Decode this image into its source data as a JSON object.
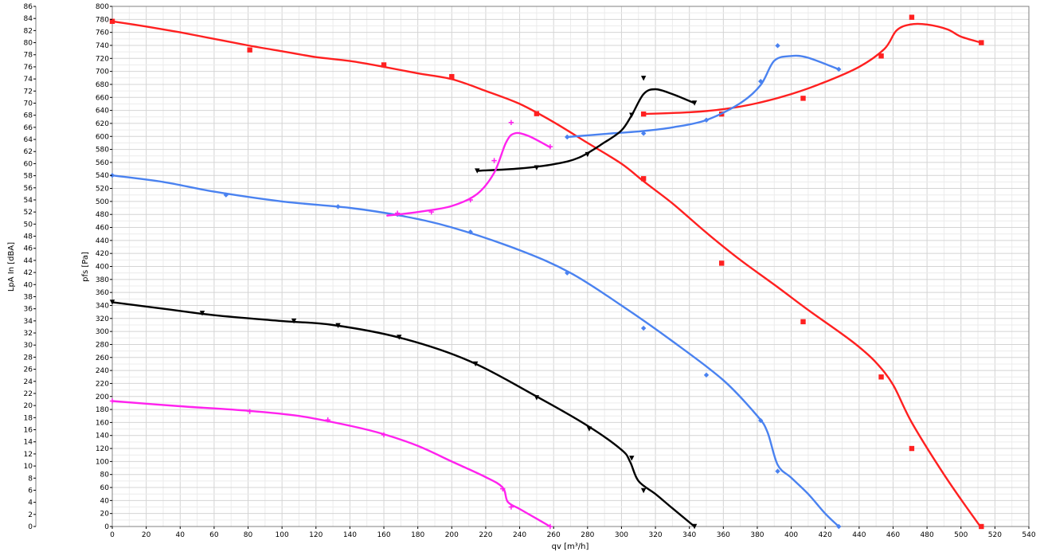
{
  "chart_data": {
    "type": "line",
    "xlabel": "qv [m³/h]",
    "ylabel": "pfs [Pa]",
    "y2label": "LpA In [dBA]",
    "xlim": [
      0,
      540
    ],
    "ylim": [
      0,
      800
    ],
    "y2lim": [
      0,
      86
    ],
    "x_ticks": [
      0,
      20,
      40,
      60,
      80,
      100,
      120,
      140,
      160,
      180,
      200,
      220,
      240,
      260,
      280,
      300,
      320,
      340,
      360,
      380,
      400,
      420,
      440,
      460,
      480,
      500,
      520,
      540
    ],
    "y_ticks": [
      0,
      20,
      40,
      60,
      80,
      100,
      120,
      140,
      160,
      180,
      200,
      220,
      240,
      260,
      280,
      300,
      320,
      340,
      360,
      380,
      400,
      420,
      440,
      460,
      480,
      500,
      520,
      540,
      560,
      580,
      600,
      620,
      640,
      660,
      680,
      700,
      720,
      740,
      760,
      780,
      800
    ],
    "y2_ticks": [
      0,
      2,
      4,
      6,
      8,
      10,
      12,
      14,
      16,
      18,
      20,
      22,
      24,
      26,
      28,
      30,
      32,
      34,
      36,
      38,
      40,
      42,
      44,
      46,
      48,
      50,
      52,
      54,
      56,
      58,
      60,
      62,
      64,
      66,
      68,
      70,
      72,
      74,
      76,
      78,
      80,
      82,
      84,
      86
    ],
    "grid": true,
    "series": [
      {
        "color": "#ff2020",
        "axis": "pressure",
        "marker": "square",
        "points": [
          [
            0,
            777
          ],
          [
            20,
            769
          ],
          [
            40,
            760
          ],
          [
            60,
            750
          ],
          [
            80,
            740
          ],
          [
            100,
            731
          ],
          [
            120,
            722
          ],
          [
            140,
            716
          ],
          [
            160,
            707
          ],
          [
            180,
            697
          ],
          [
            200,
            688
          ],
          [
            220,
            670
          ],
          [
            240,
            650
          ],
          [
            260,
            622
          ],
          [
            280,
            590
          ],
          [
            300,
            558
          ],
          [
            313,
            531
          ],
          [
            330,
            497
          ],
          [
            350,
            452
          ],
          [
            370,
            410
          ],
          [
            390,
            372
          ],
          [
            410,
            333
          ],
          [
            430,
            296
          ],
          [
            440,
            276
          ],
          [
            450,
            252
          ],
          [
            460,
            218
          ],
          [
            471,
            160
          ],
          [
            490,
            80
          ],
          [
            510,
            5
          ],
          [
            512,
            0
          ]
        ],
        "markers": [
          [
            0,
            777
          ],
          [
            81,
            733
          ],
          [
            160,
            710
          ],
          [
            200,
            692
          ],
          [
            250,
            635
          ],
          [
            313,
            535
          ],
          [
            359,
            405
          ],
          [
            407,
            315
          ],
          [
            453,
            230
          ],
          [
            471,
            120
          ],
          [
            512,
            0
          ]
        ]
      },
      {
        "color": "#4a82f0",
        "axis": "pressure",
        "marker": "diamond",
        "points": [
          [
            0,
            540
          ],
          [
            30,
            530
          ],
          [
            60,
            515
          ],
          [
            100,
            500
          ],
          [
            140,
            490
          ],
          [
            170,
            478
          ],
          [
            200,
            460
          ],
          [
            240,
            425
          ],
          [
            270,
            390
          ],
          [
            300,
            340
          ],
          [
            330,
            285
          ],
          [
            360,
            225
          ],
          [
            380,
            170
          ],
          [
            386,
            145
          ],
          [
            392,
            95
          ],
          [
            400,
            75
          ],
          [
            410,
            50
          ],
          [
            420,
            20
          ],
          [
            428,
            0
          ]
        ],
        "markers": [
          [
            0,
            540
          ],
          [
            67,
            510
          ],
          [
            133,
            492
          ],
          [
            168,
            480
          ],
          [
            211,
            453
          ],
          [
            268,
            390
          ],
          [
            313,
            305
          ],
          [
            350,
            233
          ],
          [
            382,
            163
          ],
          [
            392,
            85
          ],
          [
            428,
            0
          ]
        ]
      },
      {
        "color": "#000000",
        "axis": "pressure",
        "marker": "triangle-down",
        "points": [
          [
            0,
            345
          ],
          [
            30,
            335
          ],
          [
            60,
            325
          ],
          [
            100,
            316
          ],
          [
            130,
            310
          ],
          [
            170,
            290
          ],
          [
            210,
            255
          ],
          [
            250,
            200
          ],
          [
            280,
            155
          ],
          [
            300,
            118
          ],
          [
            305,
            100
          ],
          [
            310,
            70
          ],
          [
            320,
            50
          ],
          [
            330,
            28
          ],
          [
            343,
            0
          ]
        ],
        "markers": [
          [
            0,
            345
          ],
          [
            53,
            328
          ],
          [
            107,
            316
          ],
          [
            133,
            309
          ],
          [
            169,
            291
          ],
          [
            214,
            250
          ],
          [
            250,
            198
          ],
          [
            281,
            150
          ],
          [
            306,
            105
          ],
          [
            313,
            55
          ],
          [
            343,
            0
          ]
        ]
      },
      {
        "color": "#ff22ee",
        "axis": "pressure",
        "marker": "plus",
        "points": [
          [
            0,
            193
          ],
          [
            40,
            185
          ],
          [
            80,
            178
          ],
          [
            110,
            170
          ],
          [
            140,
            155
          ],
          [
            160,
            142
          ],
          [
            180,
            124
          ],
          [
            200,
            100
          ],
          [
            220,
            76
          ],
          [
            230,
            60
          ],
          [
            233,
            38
          ],
          [
            240,
            27
          ],
          [
            250,
            12
          ],
          [
            258,
            0
          ]
        ],
        "markers": [
          [
            0,
            193
          ],
          [
            81,
            177
          ],
          [
            127,
            164
          ],
          [
            160,
            141
          ],
          [
            230,
            58
          ],
          [
            235,
            30
          ],
          [
            258,
            0
          ]
        ]
      },
      {
        "color": "#ff2020",
        "axis": "noise",
        "marker": "square",
        "points": [
          [
            313,
            68.2
          ],
          [
            340,
            68.5
          ],
          [
            360,
            69
          ],
          [
            380,
            70
          ],
          [
            400,
            71.5
          ],
          [
            420,
            73.5
          ],
          [
            440,
            76
          ],
          [
            455,
            79
          ],
          [
            462,
            82
          ],
          [
            470,
            83
          ],
          [
            480,
            83
          ],
          [
            492,
            82.2
          ],
          [
            500,
            81
          ],
          [
            512,
            80
          ]
        ],
        "markers": [
          [
            313,
            68.2
          ],
          [
            359,
            68.2
          ],
          [
            407,
            70.8
          ],
          [
            453,
            77.8
          ],
          [
            471,
            84.2
          ],
          [
            512,
            80
          ]
        ]
      },
      {
        "color": "#4a82f0",
        "axis": "noise",
        "marker": "diamond",
        "points": [
          [
            268,
            64.4
          ],
          [
            290,
            64.9
          ],
          [
            313,
            65.4
          ],
          [
            330,
            66
          ],
          [
            350,
            67.2
          ],
          [
            370,
            70
          ],
          [
            382,
            73
          ],
          [
            390,
            77
          ],
          [
            400,
            77.8
          ],
          [
            410,
            77.5
          ],
          [
            428,
            75.6
          ]
        ],
        "markers": [
          [
            268,
            64.4
          ],
          [
            313,
            65
          ],
          [
            350,
            67.2
          ],
          [
            382,
            73.6
          ],
          [
            392,
            79.5
          ],
          [
            428,
            75.6
          ]
        ]
      },
      {
        "color": "#000000",
        "axis": "noise",
        "marker": "triangle-down",
        "points": [
          [
            215,
            58.8
          ],
          [
            240,
            59.2
          ],
          [
            260,
            59.9
          ],
          [
            275,
            61
          ],
          [
            290,
            63.5
          ],
          [
            300,
            65.5
          ],
          [
            306,
            68
          ],
          [
            313,
            71.5
          ],
          [
            320,
            72.3
          ],
          [
            330,
            71.5
          ],
          [
            343,
            70
          ]
        ],
        "markers": [
          [
            215,
            58.8
          ],
          [
            250,
            59.3
          ],
          [
            280,
            61.5
          ],
          [
            306,
            68
          ],
          [
            313,
            74.1
          ],
          [
            343,
            70
          ]
        ]
      },
      {
        "color": "#ff22ee",
        "axis": "noise",
        "marker": "plus",
        "points": [
          [
            162,
            51.4
          ],
          [
            180,
            52
          ],
          [
            200,
            53
          ],
          [
            215,
            55
          ],
          [
            225,
            58.5
          ],
          [
            232,
            63.5
          ],
          [
            237,
            65
          ],
          [
            245,
            64.6
          ],
          [
            258,
            62.7
          ]
        ],
        "markers": [
          [
            168,
            51.8
          ],
          [
            188,
            52
          ],
          [
            211,
            54
          ],
          [
            225,
            60.5
          ],
          [
            235,
            66.8
          ],
          [
            258,
            62.8
          ]
        ]
      }
    ]
  }
}
